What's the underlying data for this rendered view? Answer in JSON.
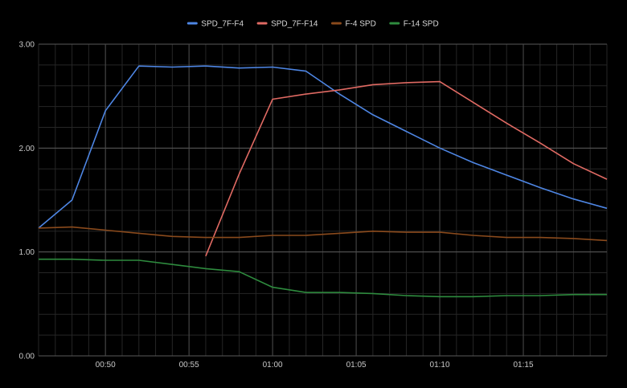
{
  "chart_data": {
    "type": "line",
    "background": "#000000",
    "grid": true,
    "legend_position": "top-center",
    "x_ticks": [
      "00:50",
      "00:55",
      "01:00",
      "01:05",
      "01:10",
      "01:15"
    ],
    "y_ticks": [
      "0.00",
      "1.00",
      "2.00",
      "3.00"
    ],
    "ylim": [
      0,
      3
    ],
    "x_range": [
      "00:46",
      "01:20"
    ],
    "series": [
      {
        "name": "SPD_7F-F4",
        "color": "#4e86e4",
        "points": [
          [
            "00:46",
            1.23
          ],
          [
            "00:48",
            1.5
          ],
          [
            "00:50",
            2.36
          ],
          [
            "00:52",
            2.79
          ],
          [
            "00:54",
            2.78
          ],
          [
            "00:56",
            2.79
          ],
          [
            "00:58",
            2.77
          ],
          [
            "01:00",
            2.78
          ],
          [
            "01:02",
            2.74
          ],
          [
            "01:04",
            2.52
          ],
          [
            "01:06",
            2.32
          ],
          [
            "01:08",
            2.16
          ],
          [
            "01:10",
            2.0
          ],
          [
            "01:12",
            1.86
          ],
          [
            "01:14",
            1.74
          ],
          [
            "01:16",
            1.62
          ],
          [
            "01:18",
            1.51
          ],
          [
            "01:20",
            1.42
          ]
        ]
      },
      {
        "name": "SPD_7F-F14",
        "color": "#e06a63",
        "points": [
          [
            "00:56",
            0.96
          ],
          [
            "00:58",
            1.75
          ],
          [
            "01:00",
            2.47
          ],
          [
            "01:02",
            2.52
          ],
          [
            "01:04",
            2.56
          ],
          [
            "01:06",
            2.61
          ],
          [
            "01:08",
            2.63
          ],
          [
            "01:10",
            2.64
          ],
          [
            "01:12",
            2.44
          ],
          [
            "01:14",
            2.24
          ],
          [
            "01:16",
            2.05
          ],
          [
            "01:18",
            1.85
          ],
          [
            "01:20",
            1.7
          ]
        ]
      },
      {
        "name": "F-4 SPD",
        "color": "#8a4a1c",
        "points": [
          [
            "00:46",
            1.23
          ],
          [
            "00:48",
            1.24
          ],
          [
            "00:50",
            1.21
          ],
          [
            "00:52",
            1.18
          ],
          [
            "00:54",
            1.15
          ],
          [
            "00:56",
            1.14
          ],
          [
            "00:58",
            1.14
          ],
          [
            "01:00",
            1.16
          ],
          [
            "01:02",
            1.16
          ],
          [
            "01:04",
            1.18
          ],
          [
            "01:06",
            1.2
          ],
          [
            "01:08",
            1.19
          ],
          [
            "01:10",
            1.19
          ],
          [
            "01:12",
            1.16
          ],
          [
            "01:14",
            1.14
          ],
          [
            "01:16",
            1.14
          ],
          [
            "01:18",
            1.13
          ],
          [
            "01:20",
            1.11
          ]
        ]
      },
      {
        "name": "F-14 SPD",
        "color": "#2e8b3e",
        "points": [
          [
            "00:46",
            0.93
          ],
          [
            "00:48",
            0.93
          ],
          [
            "00:50",
            0.92
          ],
          [
            "00:52",
            0.92
          ],
          [
            "00:54",
            0.88
          ],
          [
            "00:56",
            0.84
          ],
          [
            "00:58",
            0.81
          ],
          [
            "01:00",
            0.66
          ],
          [
            "01:02",
            0.61
          ],
          [
            "01:04",
            0.61
          ],
          [
            "01:06",
            0.6
          ],
          [
            "01:08",
            0.58
          ],
          [
            "01:10",
            0.57
          ],
          [
            "01:12",
            0.57
          ],
          [
            "01:14",
            0.58
          ],
          [
            "01:16",
            0.58
          ],
          [
            "01:18",
            0.59
          ],
          [
            "01:20",
            0.59
          ]
        ]
      }
    ]
  }
}
